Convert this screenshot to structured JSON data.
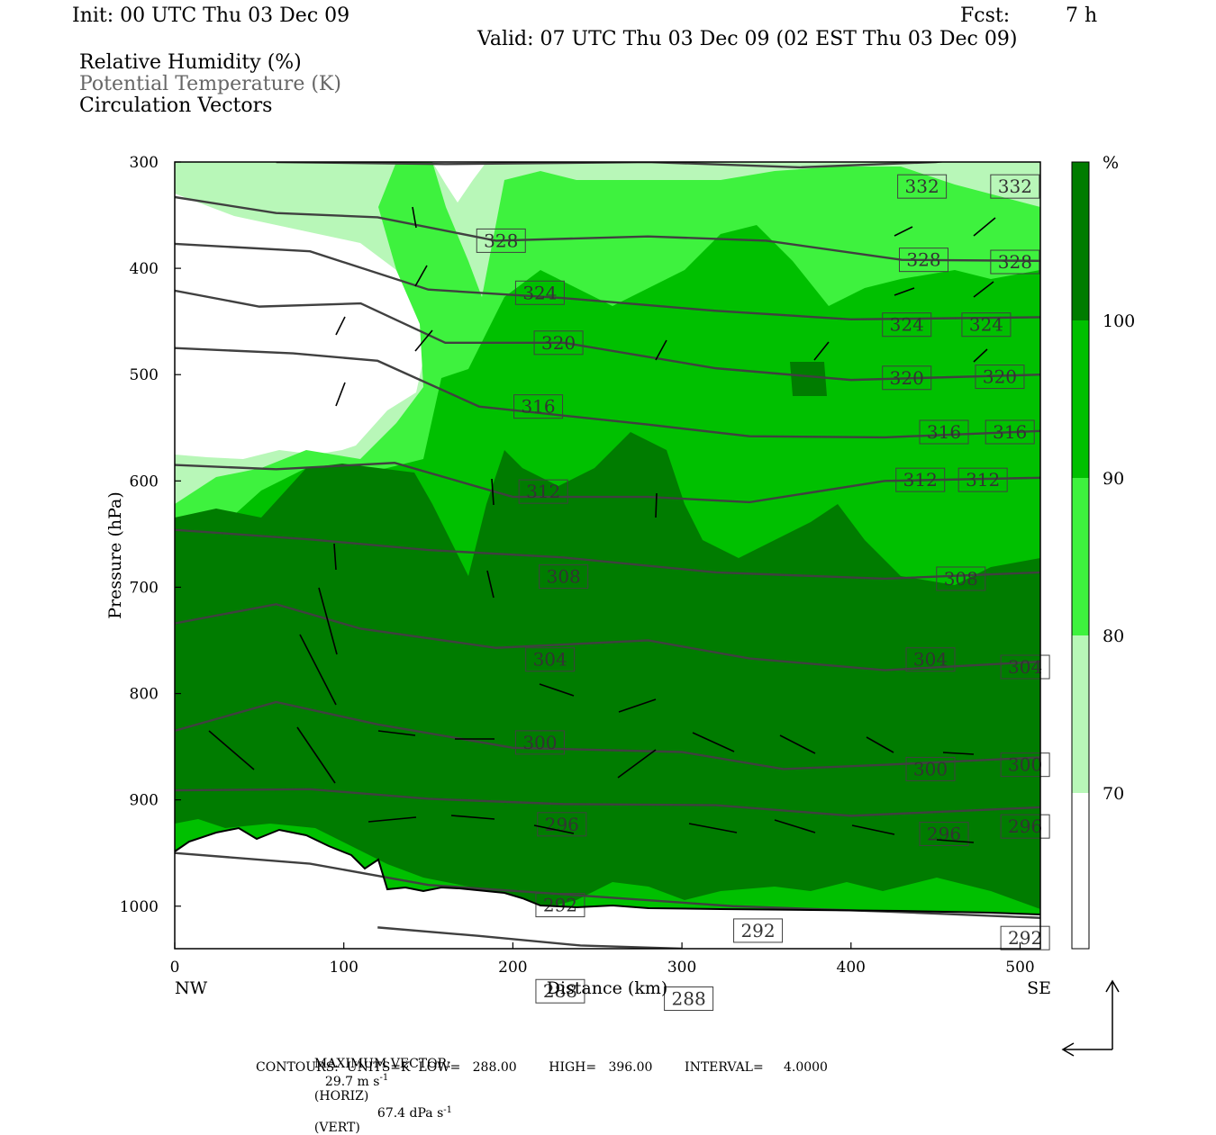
{
  "header": {
    "init": "Init: 00 UTC Thu 03 Dec 09",
    "fcst_label": "Fcst:",
    "fcst_value": "7 h",
    "valid": "Valid: 07 UTC Thu 03 Dec 09 (02 EST Thu 03 Dec 09)"
  },
  "titles": {
    "rh": "Relative Humidity (%)",
    "theta": "Potential Temperature (K)",
    "vectors": "Circulation Vectors"
  },
  "footer": {
    "max_vector_label": "MAXIMUM VECTOR:",
    "horiz_value": "29.7 m s",
    "horiz_unit": "(HORIZ)",
    "vert_value": "67.4 dPa s",
    "vert_unit": "(VERT)",
    "exp": "-1",
    "contours": "CONTOURS:  UNITS=K  LOW=   288.00        HIGH=   396.00        INTERVAL=     4.0000"
  },
  "colors": {
    "band_70_80": "#b8f7b8",
    "band_80_90": "#3ef23e",
    "band_90_100": "#00c000",
    "band_100": "#007c00",
    "contour": "#404040"
  },
  "chart_data": {
    "type": "heatmap",
    "xlabel": "Distance (km)",
    "ylabel": "Pressure (hPa)",
    "xlim": [
      0,
      512
    ],
    "ylim": [
      300,
      1040
    ],
    "x_ticks": [
      0,
      100,
      200,
      300,
      400,
      500
    ],
    "y_ticks": [
      300,
      400,
      500,
      600,
      700,
      800,
      900,
      1000
    ],
    "x_end_labels": {
      "left": "NW",
      "right": "SE"
    },
    "colorbar": {
      "unit": "%",
      "levels": [
        70,
        80,
        90,
        100
      ],
      "level_labels": [
        "70",
        "80",
        "90",
        "100"
      ]
    },
    "theta_contours": [
      {
        "label": "332",
        "pts": [
          [
            60,
            300
          ],
          [
            160,
            302
          ],
          [
            280,
            300
          ],
          [
            370,
            305
          ],
          [
            450,
            300
          ],
          [
            512,
            291
          ]
        ],
        "labels_at": [
          [
            442,
            323
          ],
          [
            497,
            323
          ]
        ]
      },
      {
        "label": "328",
        "pts": [
          [
            0,
            333
          ],
          [
            60,
            348
          ],
          [
            120,
            352
          ],
          [
            190,
            374
          ],
          [
            280,
            370
          ],
          [
            350,
            374
          ],
          [
            430,
            392
          ],
          [
            512,
            393
          ]
        ],
        "labels_at": [
          [
            193,
            374
          ],
          [
            443,
            392
          ],
          [
            497,
            394
          ]
        ]
      },
      {
        "label": "324",
        "pts": [
          [
            0,
            377
          ],
          [
            80,
            384
          ],
          [
            150,
            420
          ],
          [
            230,
            428
          ],
          [
            320,
            440
          ],
          [
            400,
            448
          ],
          [
            512,
            446
          ]
        ],
        "labels_at": [
          [
            216,
            423
          ],
          [
            433,
            453
          ],
          [
            480,
            453
          ]
        ]
      },
      {
        "label": "320",
        "pts": [
          [
            0,
            421
          ],
          [
            50,
            436
          ],
          [
            110,
            433
          ],
          [
            160,
            470
          ],
          [
            230,
            470
          ],
          [
            320,
            494
          ],
          [
            400,
            505
          ],
          [
            512,
            500
          ]
        ],
        "labels_at": [
          [
            227,
            470
          ],
          [
            433,
            503
          ],
          [
            488,
            502
          ]
        ]
      },
      {
        "label": "316",
        "pts": [
          [
            0,
            475
          ],
          [
            70,
            480
          ],
          [
            120,
            487
          ],
          [
            180,
            530
          ],
          [
            280,
            547
          ],
          [
            340,
            558
          ],
          [
            420,
            559
          ],
          [
            512,
            553
          ]
        ],
        "labels_at": [
          [
            215,
            530
          ],
          [
            455,
            554
          ],
          [
            494,
            554
          ]
        ]
      },
      {
        "label": "312",
        "pts": [
          [
            0,
            585
          ],
          [
            60,
            589
          ],
          [
            130,
            583
          ],
          [
            200,
            615
          ],
          [
            280,
            615
          ],
          [
            340,
            620
          ],
          [
            420,
            600
          ],
          [
            512,
            597
          ]
        ],
        "labels_at": [
          [
            218,
            610
          ],
          [
            441,
            599
          ],
          [
            478,
            599
          ]
        ]
      },
      {
        "label": "308",
        "pts": [
          [
            0,
            646
          ],
          [
            80,
            655
          ],
          [
            150,
            665
          ],
          [
            230,
            672
          ],
          [
            320,
            686
          ],
          [
            420,
            692
          ],
          [
            512,
            686
          ]
        ],
        "labels_at": [
          [
            230,
            690
          ],
          [
            465,
            692
          ]
        ]
      },
      {
        "label": "304",
        "pts": [
          [
            0,
            734
          ],
          [
            60,
            716
          ],
          [
            110,
            739
          ],
          [
            190,
            757
          ],
          [
            280,
            750
          ],
          [
            340,
            767
          ],
          [
            420,
            778
          ],
          [
            512,
            770
          ]
        ],
        "labels_at": [
          [
            222,
            768
          ],
          [
            447,
            768
          ],
          [
            503,
            775
          ]
        ]
      },
      {
        "label": "300",
        "pts": [
          [
            0,
            835
          ],
          [
            60,
            808
          ],
          [
            120,
            829
          ],
          [
            200,
            851
          ],
          [
            300,
            855
          ],
          [
            360,
            871
          ],
          [
            420,
            867
          ],
          [
            512,
            860
          ]
        ],
        "labels_at": [
          [
            216,
            846
          ],
          [
            447,
            871
          ],
          [
            503,
            867
          ]
        ]
      },
      {
        "label": "296",
        "pts": [
          [
            0,
            891
          ],
          [
            80,
            890
          ],
          [
            150,
            899
          ],
          [
            230,
            904
          ],
          [
            320,
            905
          ],
          [
            400,
            915
          ],
          [
            512,
            907
          ]
        ],
        "labels_at": [
          [
            229,
            923
          ],
          [
            455,
            932
          ],
          [
            503,
            925
          ]
        ]
      },
      {
        "label": "292",
        "pts": [
          [
            0,
            950
          ],
          [
            80,
            960
          ],
          [
            150,
            980
          ],
          [
            240,
            990
          ],
          [
            330,
            1000
          ],
          [
            420,
            1005
          ],
          [
            512,
            1011
          ]
        ],
        "labels_at": [
          [
            228,
            999
          ],
          [
            345,
            1023
          ],
          [
            503,
            1030
          ]
        ]
      },
      {
        "label": "288",
        "pts": [
          [
            120,
            1020
          ],
          [
            180,
            1028
          ],
          [
            240,
            1037
          ],
          [
            300,
            1040
          ]
        ],
        "labels_at": [
          [
            228,
            1080
          ],
          [
            304,
            1087
          ]
        ]
      }
    ]
  }
}
